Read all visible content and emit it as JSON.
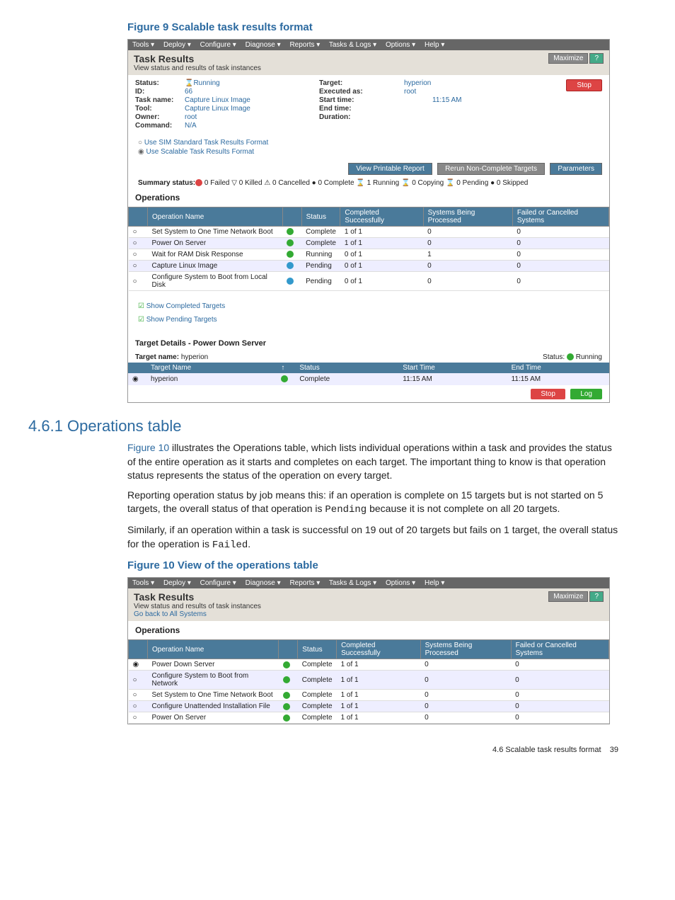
{
  "fig9": {
    "caption": "Figure 9 Scalable task results format"
  },
  "fig10": {
    "caption": "Figure 10 View of the operations table"
  },
  "section": {
    "heading": "4.6.1 Operations table"
  },
  "para1a": "Figure 10",
  "para1b": " illustrates the Operations table, which lists individual operations within a task and provides the status of the entire operation as it starts and completes on each target. The important thing to know is that operation status represents the status of the operation on every target.",
  "para2a": "Reporting operation status by job means this: if an operation is complete on 15 targets but is not started on 5 targets, the overall status of that operation is ",
  "para2b": "Pending",
  "para2c": " because it is not complete on all 20 targets.",
  "para3a": "Similarly, if an operation within a task is successful on 19 out of 20 targets but fails on 1 target, the overall status for the operation is ",
  "para3b": "Failed",
  "para3c": ".",
  "menu": {
    "tools": "Tools ▾",
    "deploy": "Deploy ▾",
    "configure": "Configure ▾",
    "diagnose": "Diagnose ▾",
    "reports": "Reports ▾",
    "tasks": "Tasks & Logs ▾",
    "options": "Options ▾",
    "help": "Help ▾"
  },
  "hdr": {
    "title": "Task Results",
    "sub": "View status and results of task instances",
    "sub2": "Go back to All Systems",
    "max": "Maximize",
    "q": "?"
  },
  "info": {
    "status_l": "Status:",
    "status_v": "Running",
    "id_l": "ID:",
    "id_v": "66",
    "task_l": "Task name:",
    "task_v": "Capture Linux Image",
    "tool_l": "Tool:",
    "tool_v": "Capture Linux Image",
    "owner_l": "Owner:",
    "owner_v": "root",
    "cmd_l": "Command:",
    "cmd_v": "N/A",
    "target_l": "Target:",
    "target_v": "hyperion",
    "exec_l": "Executed as:",
    "exec_v": "root",
    "start_l": "Start time:",
    "start_v": "11:15 AM",
    "end_l": "End time:",
    "dur_l": "Duration:",
    "stop": "Stop"
  },
  "radios": {
    "r1": "Use SIM Standard Task Results Format",
    "r2": "Use Scalable Task Results Format"
  },
  "actions": {
    "print": "View Printable Report",
    "rerun": "Rerun Non-Complete Targets",
    "params": "Parameters"
  },
  "summary": {
    "lead": "Summary status:",
    "tail": " 0 Failed ▽ 0 Killed ⚠ 0 Cancelled ● 0 Complete ⌛ 1 Running ⌛ 0 Copying ⌛ 0 Pending ● 0 Skipped"
  },
  "ops": {
    "title": "Operations",
    "cols": {
      "name": "Operation Name",
      "status": "Status",
      "comp": "Completed Successfully",
      "proc": "Systems Being Processed",
      "fail": "Failed or Cancelled Systems"
    },
    "rows9": [
      {
        "name": "Set System to One Time Network Boot",
        "status": "Complete",
        "comp": "1 of 1",
        "proc": "0",
        "fail": "0",
        "ico": "g"
      },
      {
        "name": "Power On Server",
        "status": "Complete",
        "comp": "1 of 1",
        "proc": "0",
        "fail": "0",
        "ico": "g"
      },
      {
        "name": "Wait for RAM Disk Response",
        "status": "Running",
        "comp": "0 of 1",
        "proc": "1",
        "fail": "0",
        "ico": "g"
      },
      {
        "name": "Capture Linux Image",
        "status": "Pending",
        "comp": "0 of 1",
        "proc": "0",
        "fail": "0",
        "ico": "b"
      },
      {
        "name": "Configure System to Boot from Local Disk",
        "status": "Pending",
        "comp": "0 of 1",
        "proc": "0",
        "fail": "0",
        "ico": "b"
      }
    ],
    "rows10": [
      {
        "name": "Power Down Server",
        "status": "Complete",
        "comp": "1 of 1",
        "proc": "0",
        "fail": "0",
        "ico": "g",
        "sel": true
      },
      {
        "name": "Configure System to Boot from Network",
        "status": "Complete",
        "comp": "1 of 1",
        "proc": "0",
        "fail": "0",
        "ico": "g"
      },
      {
        "name": "Set System to One Time Network Boot",
        "status": "Complete",
        "comp": "1 of 1",
        "proc": "0",
        "fail": "0",
        "ico": "g"
      },
      {
        "name": "Configure Unattended Installation File",
        "status": "Complete",
        "comp": "1 of 1",
        "proc": "0",
        "fail": "0",
        "ico": "g"
      },
      {
        "name": "Power On Server",
        "status": "Complete",
        "comp": "1 of 1",
        "proc": "0",
        "fail": "0",
        "ico": "g"
      }
    ]
  },
  "checks": {
    "c1": "Show Completed Targets",
    "c2": "Show Pending Targets"
  },
  "tdet": {
    "title": "Target Details - Power Down Server",
    "name_l": "Target name:",
    "name_v": "hyperion",
    "status_l": "Status:",
    "status_v": "Running",
    "cols": {
      "name": "Target Name",
      "status": "Status",
      "start": "Start Time",
      "end": "End Time"
    },
    "row": {
      "name": "hyperion",
      "status": "Complete",
      "start": "11:15 AM",
      "end": "11:15 AM"
    },
    "stop": "Stop",
    "log": "Log"
  },
  "footer": {
    "sec": "4.6 Scalable task results format",
    "page": "39"
  }
}
